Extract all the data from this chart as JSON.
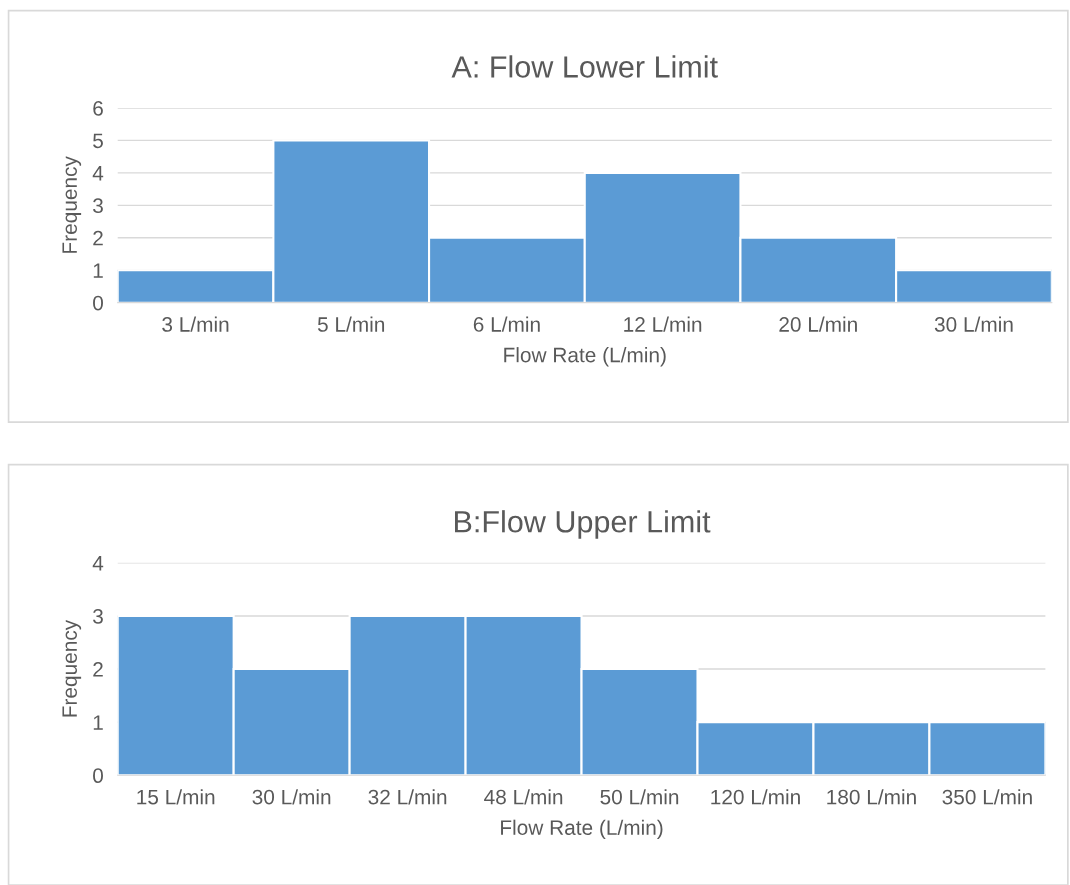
{
  "chart_data": [
    {
      "type": "bar",
      "title": "A: Flow Lower Limit",
      "xlabel": "Flow Rate (L/min)",
      "ylabel": "Frequency",
      "categories": [
        "3 L/min",
        "5 L/min",
        "6 L/min",
        "12 L/min",
        "20 L/min",
        "30 L/min"
      ],
      "values": [
        1,
        5,
        2,
        4,
        2,
        1
      ],
      "color": "#5b9bd5",
      "ylim": [
        0,
        6
      ],
      "yticks": [
        0,
        1,
        2,
        3,
        4,
        5,
        6
      ],
      "grid": "y"
    },
    {
      "type": "bar",
      "title": "B:Flow Upper Limit",
      "xlabel": "Flow Rate (L/min)",
      "ylabel": "Frequency",
      "categories": [
        "15 L/min",
        "30 L/min",
        "32 L/min",
        "48 L/min",
        "50 L/min",
        "120 L/min",
        "180 L/min",
        "350 L/min"
      ],
      "values": [
        3,
        2,
        3,
        3,
        2,
        1,
        1,
        1
      ],
      "color": "#5b9bd5",
      "ylim": [
        0,
        4
      ],
      "yticks": [
        0,
        1,
        2,
        3,
        4
      ],
      "grid": "y"
    }
  ]
}
